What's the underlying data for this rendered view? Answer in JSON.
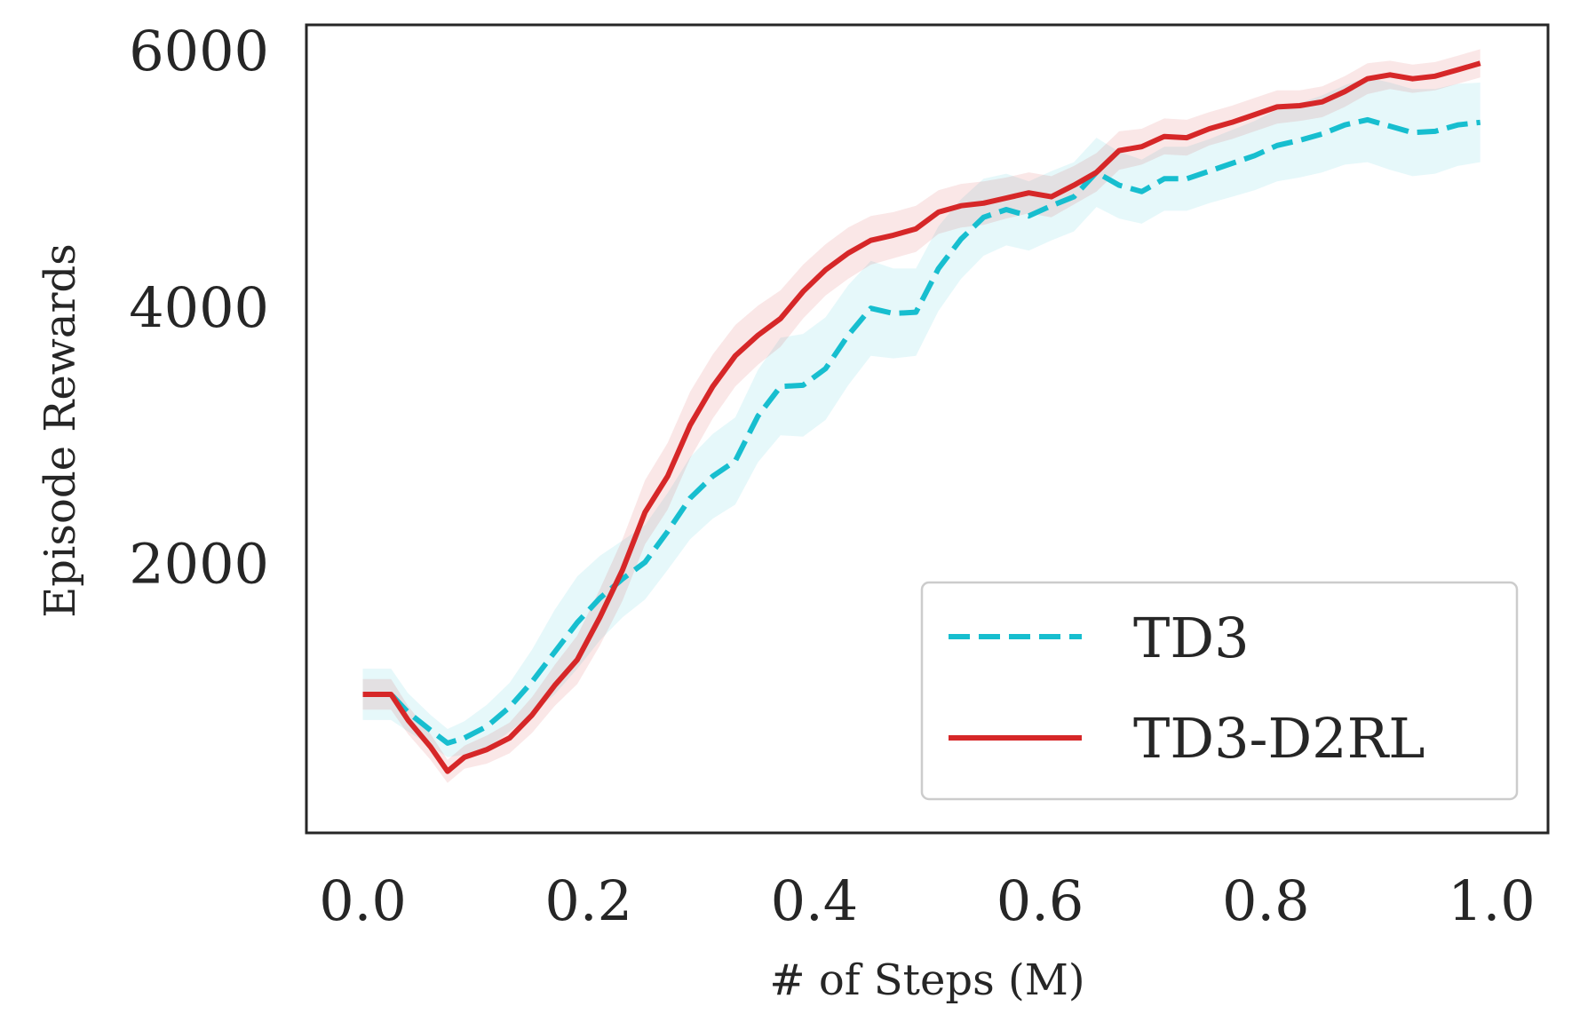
{
  "chart_data": {
    "type": "line",
    "title": "",
    "xlabel": "# of Steps (M)",
    "ylabel": "Episode Rewards",
    "xlim": [
      -0.05,
      1.05
    ],
    "ylim": [
      -100,
      6200
    ],
    "xticks": [
      0.0,
      0.2,
      0.4,
      0.6,
      0.8,
      1.0
    ],
    "xtick_labels": [
      "0.0",
      "0.2",
      "0.4",
      "0.6",
      "0.8",
      "1.0"
    ],
    "yticks": [
      2000,
      4000,
      6000
    ],
    "ytick_labels": [
      "2000",
      "4000",
      "6000"
    ],
    "grid": false,
    "legend_position": "lower right",
    "series": [
      {
        "name": "TD3",
        "color": "#17becf",
        "style": "dashed",
        "x": [
          0.0,
          0.025,
          0.04,
          0.06,
          0.075,
          0.09,
          0.11,
          0.13,
          0.15,
          0.17,
          0.19,
          0.21,
          0.23,
          0.25,
          0.27,
          0.29,
          0.31,
          0.33,
          0.35,
          0.37,
          0.39,
          0.41,
          0.43,
          0.45,
          0.47,
          0.49,
          0.51,
          0.53,
          0.55,
          0.57,
          0.59,
          0.61,
          0.63,
          0.65,
          0.67,
          0.69,
          0.71,
          0.73,
          0.75,
          0.77,
          0.79,
          0.81,
          0.83,
          0.85,
          0.87,
          0.89,
          0.91,
          0.93,
          0.95,
          0.97,
          0.99
        ],
        "y": [
          980,
          980,
          840,
          700,
          600,
          640,
          730,
          880,
          1080,
          1310,
          1540,
          1730,
          1880,
          2010,
          2250,
          2510,
          2680,
          2800,
          3150,
          3380,
          3390,
          3520,
          3780,
          3990,
          3950,
          3960,
          4300,
          4530,
          4700,
          4760,
          4710,
          4790,
          4860,
          5050,
          4950,
          4900,
          5000,
          5000,
          5060,
          5120,
          5180,
          5260,
          5300,
          5350,
          5420,
          5460,
          5410,
          5360,
          5370,
          5420,
          5440
        ],
        "band": [
          200,
          200,
          150,
          120,
          110,
          130,
          170,
          190,
          250,
          330,
          360,
          330,
          300,
          290,
          300,
          320,
          330,
          340,
          360,
          380,
          400,
          400,
          390,
          370,
          350,
          340,
          330,
          310,
          300,
          280,
          270,
          270,
          270,
          270,
          260,
          250,
          250,
          250,
          250,
          260,
          270,
          280,
          290,
          300,
          310,
          330,
          340,
          340,
          330,
          320,
          310
        ]
      },
      {
        "name": "TD3-D2RL",
        "color": "#d62728",
        "style": "solid",
        "x": [
          0.0,
          0.025,
          0.04,
          0.06,
          0.075,
          0.09,
          0.11,
          0.13,
          0.15,
          0.17,
          0.19,
          0.21,
          0.23,
          0.25,
          0.27,
          0.29,
          0.31,
          0.33,
          0.35,
          0.37,
          0.39,
          0.41,
          0.43,
          0.45,
          0.47,
          0.49,
          0.51,
          0.53,
          0.55,
          0.57,
          0.59,
          0.61,
          0.63,
          0.65,
          0.67,
          0.69,
          0.71,
          0.73,
          0.75,
          0.77,
          0.79,
          0.81,
          0.83,
          0.85,
          0.87,
          0.89,
          0.91,
          0.93,
          0.95,
          0.97,
          0.99
        ],
        "y": [
          980,
          980,
          780,
          570,
          380,
          490,
          550,
          640,
          820,
          1050,
          1250,
          1580,
          1950,
          2400,
          2680,
          3080,
          3380,
          3620,
          3780,
          3910,
          4120,
          4290,
          4420,
          4520,
          4560,
          4610,
          4740,
          4790,
          4810,
          4850,
          4890,
          4860,
          4950,
          5050,
          5220,
          5250,
          5330,
          5320,
          5390,
          5440,
          5500,
          5560,
          5570,
          5600,
          5680,
          5780,
          5810,
          5780,
          5800,
          5850,
          5900
        ],
        "band": [
          120,
          120,
          110,
          100,
          90,
          90,
          110,
          120,
          140,
          160,
          190,
          220,
          240,
          250,
          260,
          260,
          250,
          240,
          230,
          220,
          210,
          200,
          200,
          190,
          180,
          180,
          170,
          170,
          170,
          160,
          160,
          160,
          150,
          150,
          150,
          140,
          140,
          140,
          130,
          130,
          130,
          130,
          120,
          120,
          120,
          120,
          110,
          110,
          110,
          110,
          110
        ]
      }
    ]
  }
}
